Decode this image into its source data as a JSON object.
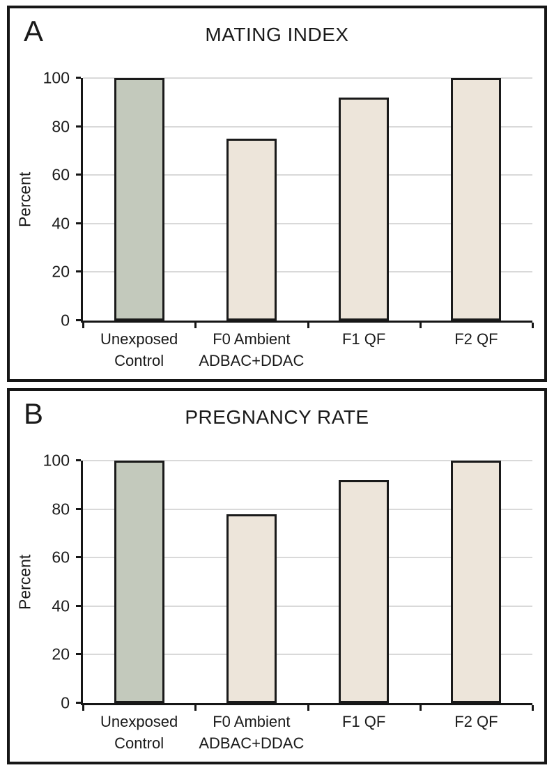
{
  "chart_data": [
    {
      "type": "bar",
      "panel_label": "A",
      "title": "MATING INDEX",
      "ylabel": "Percent",
      "categories": [
        "Unexposed\nControl",
        "F0 Ambient\nADBAC+DDAC",
        "F1 QF",
        "F2 QF"
      ],
      "values": [
        100,
        75,
        92,
        100
      ],
      "ylim": [
        0,
        100
      ],
      "yticks": [
        0,
        20,
        40,
        60,
        80,
        100
      ],
      "grid": true,
      "legend": "none",
      "bar_fill_colors": [
        "#c3c9bc",
        "#ede5da",
        "#ede5da",
        "#ede5da"
      ],
      "bar_border_color": "#1a1a1a",
      "gridline_color": "#d9d9d9",
      "axis_color": "#161616"
    },
    {
      "type": "bar",
      "panel_label": "B",
      "title": "PREGNANCY RATE",
      "ylabel": "Percent",
      "categories": [
        "Unexposed\nControl",
        "F0 Ambient\nADBAC+DDAC",
        "F1 QF",
        "F2 QF"
      ],
      "values": [
        100,
        78,
        92,
        100
      ],
      "ylim": [
        0,
        100
      ],
      "yticks": [
        0,
        20,
        40,
        60,
        80,
        100
      ],
      "grid": true,
      "legend": "none",
      "bar_fill_colors": [
        "#c3c9bc",
        "#ede5da",
        "#ede5da",
        "#ede5da"
      ],
      "bar_border_color": "#1a1a1a",
      "gridline_color": "#d9d9d9",
      "axis_color": "#161616"
    }
  ]
}
